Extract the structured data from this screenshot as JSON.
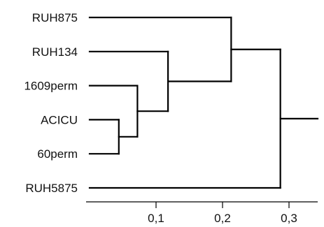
{
  "chart_data": {
    "type": "dendrogram",
    "orientation": "horizontal",
    "title": "",
    "xlabel": "",
    "ylabel": "",
    "leaves": [
      "RUH875",
      "RUH134",
      "1609perm",
      "ACICU",
      "60perm",
      "RUH5875"
    ],
    "merges": [
      {
        "id": "m1",
        "children": [
          "ACICU",
          "60perm"
        ],
        "height": 0.044
      },
      {
        "id": "m2",
        "children": [
          "1609perm",
          "m1"
        ],
        "height": 0.072
      },
      {
        "id": "m3",
        "children": [
          "RUH134",
          "m2"
        ],
        "height": 0.118
      },
      {
        "id": "m4",
        "children": [
          "RUH875",
          "m3"
        ],
        "height": 0.213
      },
      {
        "id": "m5",
        "children": [
          "m4",
          "RUH5875"
        ],
        "height": 0.287
      }
    ],
    "xticks": [
      {
        "value": 0.1,
        "label": "0,1"
      },
      {
        "value": 0.2,
        "label": "0,2"
      },
      {
        "value": 0.3,
        "label": "0,3"
      }
    ],
    "xlim": [
      0,
      0.34
    ],
    "line_color": "#000000"
  }
}
